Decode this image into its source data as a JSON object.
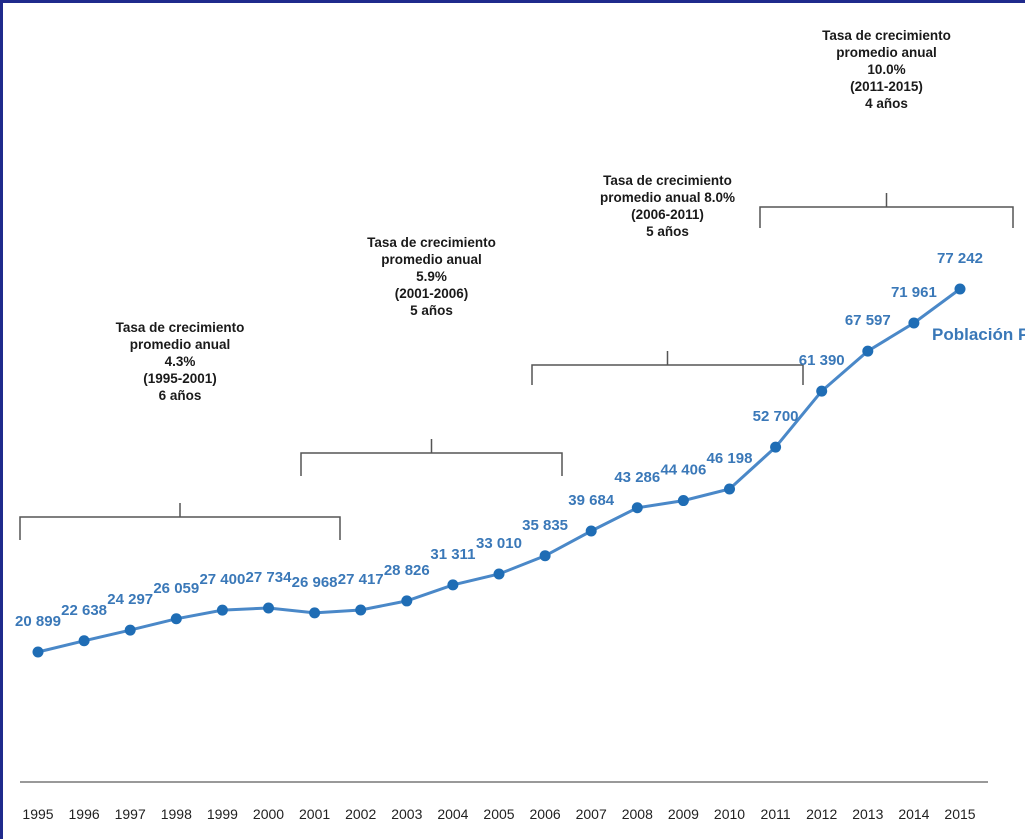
{
  "colors": {
    "line": "#4a88c8",
    "marker": "#1f6db5",
    "label": "#3a78b8",
    "bracket": "#555555",
    "frame": "#1f2a8c",
    "axis": "#999999"
  },
  "chart_data": {
    "type": "line",
    "categories": [
      "1995",
      "1996",
      "1997",
      "1998",
      "1999",
      "2000",
      "2001",
      "2002",
      "2003",
      "2004",
      "2005",
      "2006",
      "2007",
      "2008",
      "2009",
      "2010",
      "2011",
      "2012",
      "2013",
      "2014",
      "2015"
    ],
    "series": [
      {
        "name": "Población Penal",
        "values": [
          20899,
          22638,
          24297,
          26059,
          27400,
          27734,
          26968,
          27417,
          28826,
          31311,
          33010,
          35835,
          39684,
          43286,
          44406,
          46198,
          52700,
          61390,
          67597,
          71961,
          77242
        ],
        "value_labels": [
          "20 899",
          "22 638",
          "24 297",
          "26 059",
          "27 400",
          "27 734",
          "26 968",
          "27 417",
          "28 826",
          "31 311",
          "33 010",
          "35 835",
          "39 684",
          "43 286",
          "44 406",
          "46 198",
          "52 700",
          "61 390",
          "67 597",
          "71 961",
          "77 242"
        ]
      }
    ],
    "grid": false,
    "annotations": [
      {
        "from": "1995",
        "to": "2001",
        "lines": [
          "Tasa de crecimiento",
          "promedio anual",
          "4.3%",
          "(1995-2001)",
          "6 años"
        ]
      },
      {
        "from": "2001",
        "to": "2006",
        "lines": [
          "Tasa de crecimiento",
          "promedio anual",
          "5.9%",
          "(2001-2006)",
          "5 años"
        ]
      },
      {
        "from": "2006",
        "to": "2011",
        "lines": [
          "Tasa de crecimiento",
          "promedio anual 8.0%",
          "(2006-2011)",
          "5 años"
        ]
      },
      {
        "from": "2011",
        "to": "2015",
        "lines": [
          "Tasa de crecimiento",
          "promedio anual",
          "10.0%",
          "(2011-2015)",
          "4 años"
        ]
      }
    ]
  }
}
